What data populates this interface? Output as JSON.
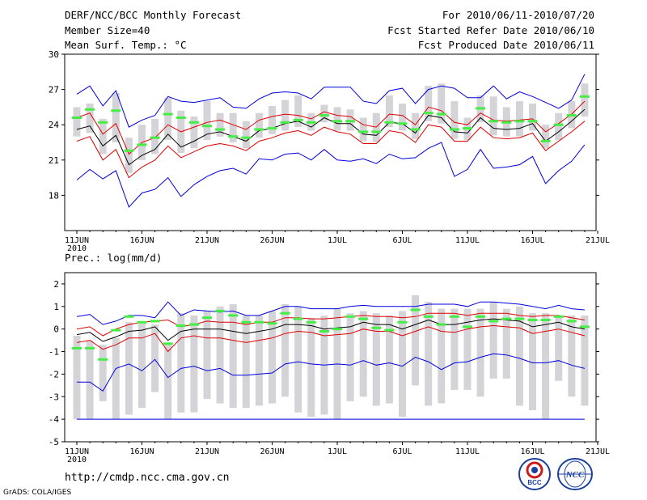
{
  "header": {
    "title": "DERF/NCC/BCC Monthly Forecast",
    "member_size": "Member Size=40",
    "variable": "Mean Surf. Temp.: °C",
    "period": "For 2010/06/11-2010/07/20",
    "fcst_started": "Fcst Started Refer Date 2010/06/10",
    "fcst_produced": "Fcst Produced Date 2010/06/11"
  },
  "precip_label": "Prec.: log(mm/d)",
  "footer": {
    "url": "http://cmdp.ncc.cma.gov.cn",
    "grads": "GrADS: COLA/IGES",
    "logo_left": "BCC",
    "logo_right": "NCC"
  },
  "colors": {
    "blue": "#0000dd",
    "red": "#dd0000",
    "black": "#000000",
    "box": "#d4d4d8",
    "median": "#44ee44"
  },
  "chart_data": [
    {
      "type": "line",
      "title": "Mean Surf. Temp.",
      "x_ticks": [
        "11JUN",
        "16JUN",
        "21JUN",
        "26JUN",
        "1JUL",
        "6JUL",
        "11JUL",
        "16JUL",
        "21JUL"
      ],
      "x_tick_days": [
        1,
        6,
        11,
        16,
        21,
        26,
        31,
        36,
        41
      ],
      "x_year_label": "2010",
      "yticks": [
        18,
        21,
        24,
        27,
        30
      ],
      "ylim": [
        15,
        30
      ],
      "days": [
        1,
        2,
        3,
        4,
        5,
        6,
        7,
        8,
        9,
        10,
        11,
        12,
        13,
        14,
        15,
        16,
        17,
        18,
        19,
        20,
        21,
        22,
        23,
        24,
        25,
        26,
        27,
        28,
        29,
        30,
        31,
        32,
        33,
        34,
        35,
        36,
        37,
        38,
        39,
        40
      ],
      "series": [
        {
          "name": "max",
          "color": "blue",
          "values": [
            26.6,
            27.3,
            25.6,
            26.9,
            23.8,
            24.4,
            24.8,
            26.4,
            26.0,
            25.9,
            26.1,
            26.3,
            25.5,
            25.4,
            26.2,
            26.7,
            26.8,
            26.7,
            26.2,
            27.2,
            27.2,
            27.2,
            26.0,
            25.8,
            26.9,
            27.1,
            25.8,
            27.0,
            27.3,
            27.1,
            26.3,
            26.3,
            27.3,
            26.2,
            26.8,
            26.4,
            25.9,
            25.4,
            26.1,
            28.3
          ]
        },
        {
          "name": "upper",
          "color": "red",
          "values": [
            24.6,
            25.0,
            23.2,
            24.1,
            21.5,
            22.5,
            22.9,
            24.0,
            23.4,
            23.8,
            24.2,
            24.4,
            24.0,
            23.6,
            24.4,
            24.7,
            24.9,
            24.8,
            24.5,
            25.1,
            24.8,
            24.7,
            24.0,
            23.8,
            24.9,
            24.8,
            24.0,
            25.5,
            25.2,
            24.2,
            24.0,
            25.0,
            24.4,
            24.3,
            24.4,
            24.5,
            23.4,
            24.1,
            24.9,
            26.0
          ]
        },
        {
          "name": "mean",
          "color": "black",
          "values": [
            23.6,
            23.9,
            22.2,
            23.1,
            20.6,
            21.4,
            21.9,
            23.2,
            22.1,
            22.6,
            23.2,
            23.4,
            23.0,
            22.6,
            23.5,
            23.7,
            24.1,
            24.3,
            23.8,
            24.6,
            24.1,
            24.1,
            23.2,
            23.1,
            24.2,
            24.1,
            23.3,
            24.8,
            24.6,
            23.4,
            23.3,
            24.6,
            23.7,
            23.6,
            23.7,
            24.1,
            22.6,
            23.4,
            24.3,
            25.3
          ]
        },
        {
          "name": "lower",
          "color": "red",
          "values": [
            22.6,
            23.0,
            21.0,
            21.9,
            19.5,
            20.4,
            21.0,
            22.2,
            21.2,
            21.7,
            22.2,
            22.4,
            22.2,
            21.8,
            22.6,
            22.9,
            23.3,
            23.5,
            23.1,
            23.8,
            23.4,
            23.2,
            22.4,
            22.4,
            23.5,
            23.3,
            22.5,
            24.0,
            23.8,
            22.6,
            22.6,
            23.8,
            22.9,
            22.8,
            22.9,
            23.3,
            21.8,
            22.6,
            23.4,
            24.3
          ]
        },
        {
          "name": "min",
          "color": "blue",
          "values": [
            19.3,
            20.2,
            19.4,
            20.1,
            17.0,
            18.2,
            18.5,
            19.5,
            17.9,
            18.9,
            19.6,
            20.1,
            20.3,
            19.8,
            21.1,
            21.0,
            21.5,
            21.6,
            21.0,
            21.9,
            21.0,
            20.9,
            21.1,
            20.7,
            21.5,
            21.1,
            21.2,
            22.0,
            22.5,
            19.6,
            20.2,
            21.9,
            20.3,
            20.4,
            20.6,
            21.3,
            19.0,
            20.1,
            20.9,
            22.3
          ]
        }
      ],
      "boxes_low": [
        23.0,
        23.3,
        21.5,
        22.5,
        19.9,
        21.0,
        21.5,
        22.7,
        21.6,
        22.0,
        22.7,
        23.0,
        22.5,
        22.0,
        22.9,
        23.2,
        23.5,
        23.8,
        23.5,
        24.2,
        23.5,
        23.5,
        22.6,
        22.5,
        23.8,
        23.5,
        22.8,
        24.3,
        24.1,
        22.8,
        22.7,
        24.2,
        23.1,
        23.0,
        23.0,
        23.5,
        22.0,
        22.7,
        23.7,
        24.7
      ],
      "boxes_high": [
        25.5,
        25.8,
        24.5,
        26.7,
        22.9,
        24.0,
        24.5,
        26.3,
        25.2,
        24.7,
        26.0,
        25.0,
        25.0,
        24.3,
        25.0,
        25.6,
        26.1,
        26.5,
        25.0,
        25.7,
        25.5,
        25.3,
        24.6,
        25.0,
        26.5,
        25.8,
        25.0,
        27.3,
        27.5,
        26.0,
        24.6,
        26.5,
        26.4,
        25.5,
        26.0,
        25.8,
        24.0,
        25.0,
        26.0,
        27.5
      ],
      "medians": [
        24.6,
        25.3,
        24.2,
        25.2,
        21.8,
        22.3,
        22.9,
        24.9,
        24.6,
        24.2,
        23.9,
        23.6,
        23.0,
        22.9,
        23.6,
        23.7,
        24.2,
        24.4,
        24.2,
        24.8,
        24.3,
        24.3,
        23.4,
        23.4,
        24.2,
        24.1,
        23.6,
        25.0,
        24.9,
        23.6,
        23.7,
        25.4,
        24.3,
        24.2,
        24.3,
        24.3,
        22.6,
        24.0,
        24.8,
        26.4
      ]
    },
    {
      "type": "line",
      "title": "Prec.: log(mm/d)",
      "x_ticks": [
        "11JUN",
        "16JUN",
        "21JUN",
        "26JUN",
        "1JUL",
        "6JUL",
        "11JUL",
        "16JUL",
        "21JUL"
      ],
      "x_tick_days": [
        1,
        6,
        11,
        16,
        21,
        26,
        31,
        36,
        41
      ],
      "x_year_label": "2010",
      "yticks": [
        -5,
        -4,
        -3,
        -2,
        -1,
        0,
        1,
        2
      ],
      "ylim": [
        -5,
        2.5
      ],
      "days": [
        1,
        2,
        3,
        4,
        5,
        6,
        7,
        8,
        9,
        10,
        11,
        12,
        13,
        14,
        15,
        16,
        17,
        18,
        19,
        20,
        21,
        22,
        23,
        24,
        25,
        26,
        27,
        28,
        29,
        30,
        31,
        32,
        33,
        34,
        35,
        36,
        37,
        38,
        39,
        40
      ],
      "series": [
        {
          "name": "max",
          "color": "blue",
          "values": [
            0.55,
            0.65,
            0.2,
            0.35,
            0.6,
            0.6,
            0.5,
            1.2,
            0.6,
            0.85,
            0.8,
            0.75,
            0.8,
            0.6,
            0.6,
            0.8,
            1.0,
            1.0,
            0.9,
            0.9,
            0.9,
            1.0,
            1.05,
            1.0,
            1.0,
            1.0,
            1.0,
            1.1,
            1.1,
            1.1,
            1.0,
            1.2,
            1.2,
            1.15,
            1.1,
            1.0,
            0.9,
            1.05,
            0.9,
            0.85
          ]
        },
        {
          "name": "upper",
          "color": "red",
          "values": [
            0.0,
            0.1,
            -0.3,
            0.0,
            0.2,
            0.3,
            0.35,
            0.4,
            0.1,
            0.2,
            0.35,
            0.3,
            0.3,
            0.2,
            0.3,
            0.3,
            0.5,
            0.5,
            0.45,
            0.45,
            0.5,
            0.55,
            0.6,
            0.55,
            0.55,
            0.5,
            0.55,
            0.7,
            0.7,
            0.7,
            0.6,
            0.7,
            0.7,
            0.7,
            0.6,
            0.55,
            0.6,
            0.6,
            0.5,
            0.4
          ]
        },
        {
          "name": "mean",
          "color": "black",
          "values": [
            -0.25,
            -0.15,
            -0.55,
            -0.35,
            -0.1,
            -0.05,
            0.1,
            -0.5,
            -0.1,
            0.0,
            0.0,
            0.0,
            -0.1,
            -0.2,
            -0.1,
            0.0,
            0.2,
            0.2,
            0.15,
            0.0,
            0.05,
            0.1,
            0.3,
            0.2,
            0.2,
            0.0,
            0.2,
            0.4,
            0.2,
            0.2,
            0.3,
            0.4,
            0.45,
            0.4,
            0.35,
            0.1,
            0.2,
            0.3,
            0.1,
            0.0
          ]
        },
        {
          "name": "lower",
          "color": "red",
          "values": [
            -0.6,
            -0.5,
            -0.9,
            -0.7,
            -0.4,
            -0.4,
            -0.2,
            -1.0,
            -0.4,
            -0.3,
            -0.4,
            -0.4,
            -0.5,
            -0.6,
            -0.5,
            -0.4,
            -0.2,
            -0.1,
            -0.15,
            -0.3,
            -0.25,
            -0.2,
            0.0,
            -0.1,
            -0.1,
            -0.3,
            -0.1,
            0.1,
            -0.1,
            -0.15,
            0.0,
            0.1,
            0.15,
            0.1,
            0.05,
            -0.2,
            -0.1,
            0.0,
            -0.15,
            -0.3
          ]
        },
        {
          "name": "min",
          "color": "blue",
          "values": [
            -2.35,
            -2.35,
            -2.75,
            -1.75,
            -1.55,
            -1.85,
            -1.35,
            -2.15,
            -1.75,
            -1.65,
            -1.85,
            -1.75,
            -2.05,
            -2.05,
            -2.0,
            -1.95,
            -1.55,
            -1.45,
            -1.55,
            -1.6,
            -1.55,
            -1.6,
            -1.4,
            -1.6,
            -1.5,
            -1.65,
            -1.25,
            -1.45,
            -1.8,
            -1.5,
            -1.45,
            -1.25,
            -1.1,
            -1.15,
            -1.3,
            -1.5,
            -1.5,
            -1.4,
            -1.6,
            -1.75
          ]
        },
        {
          "name": "floor",
          "color": "blue",
          "values": [
            -4,
            -4,
            -4,
            -4,
            -4,
            -4,
            -4,
            -4,
            -4,
            -4,
            -4,
            -4,
            -4,
            -4,
            -4,
            -4,
            -4,
            -4,
            -4,
            -4,
            -4,
            -4,
            -4,
            -4,
            -4,
            -4,
            -4,
            -4,
            -4,
            -4,
            -4,
            -4,
            -4,
            -4,
            -4,
            -4,
            -4,
            -4,
            -4,
            -4
          ]
        }
      ],
      "boxes_low": [
        -4.0,
        -4.0,
        -3.2,
        -4.0,
        -3.8,
        -3.5,
        -2.8,
        -4.0,
        -3.7,
        -3.7,
        -3.1,
        -3.3,
        -3.5,
        -3.5,
        -3.4,
        -3.3,
        -3.0,
        -3.7,
        -3.9,
        -3.8,
        -4.0,
        -3.2,
        -3.0,
        -3.4,
        -3.3,
        -3.9,
        -2.5,
        -3.4,
        -3.3,
        -2.7,
        -2.7,
        -3.0,
        -2.2,
        -2.2,
        -3.4,
        -3.6,
        -4.0,
        -2.3,
        -3.0,
        -3.4
      ],
      "boxes_high": [
        -0.3,
        -0.5,
        -0.7,
        -0.4,
        0.3,
        0.3,
        0.2,
        -0.7,
        0.7,
        0.6,
        0.8,
        1.0,
        1.1,
        0.6,
        0.6,
        0.8,
        1.1,
        1.0,
        0.5,
        0.6,
        0.9,
        0.7,
        0.8,
        0.7,
        0.6,
        0.8,
        1.5,
        1.2,
        0.9,
        0.9,
        0.9,
        0.9,
        1.2,
        0.9,
        1.0,
        0.7,
        0.7,
        0.6,
        0.6,
        0.6
      ],
      "medians": [
        -0.85,
        -0.85,
        -1.35,
        -0.05,
        0.55,
        0.3,
        0.35,
        -0.65,
        0.15,
        0.2,
        0.5,
        0.8,
        0.6,
        0.3,
        0.3,
        0.25,
        0.7,
        0.45,
        0.3,
        -0.1,
        0.0,
        0.55,
        0.45,
        0.05,
        -0.05,
        0.3,
        0.85,
        0.55,
        0.2,
        0.55,
        0.1,
        0.55,
        0.35,
        0.45,
        0.45,
        0.4,
        0.4,
        0.55,
        0.35,
        0.1
      ]
    }
  ]
}
